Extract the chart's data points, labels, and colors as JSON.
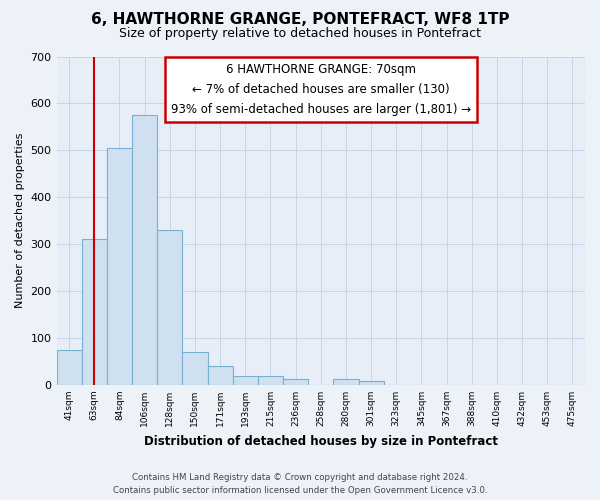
{
  "title": "6, HAWTHORNE GRANGE, PONTEFRACT, WF8 1TP",
  "subtitle": "Size of property relative to detached houses in Pontefract",
  "xlabel": "Distribution of detached houses by size in Pontefract",
  "ylabel": "Number of detached properties",
  "bar_labels": [
    "41sqm",
    "63sqm",
    "84sqm",
    "106sqm",
    "128sqm",
    "150sqm",
    "171sqm",
    "193sqm",
    "215sqm",
    "236sqm",
    "258sqm",
    "280sqm",
    "301sqm",
    "323sqm",
    "345sqm",
    "367sqm",
    "388sqm",
    "410sqm",
    "432sqm",
    "453sqm",
    "475sqm"
  ],
  "bar_values": [
    75,
    310,
    505,
    575,
    330,
    70,
    40,
    20,
    18,
    12,
    0,
    12,
    8,
    0,
    0,
    0,
    0,
    0,
    0,
    0,
    0
  ],
  "bar_face_color": "#cfe0f0",
  "bar_edge_color": "#7aafd4",
  "property_line_x": 1.0,
  "annotation_line1": "6 HAWTHORNE GRANGE: 70sqm",
  "annotation_line2": "← 7% of detached houses are smaller (130)",
  "annotation_line3": "93% of semi-detached houses are larger (1,801) →",
  "annotation_box_color": "#ffffff",
  "annotation_box_edge_color": "#cc0000",
  "ylim": [
    0,
    700
  ],
  "yticks": [
    0,
    100,
    200,
    300,
    400,
    500,
    600,
    700
  ],
  "footer_line1": "Contains HM Land Registry data © Crown copyright and database right 2024.",
  "footer_line2": "Contains public sector information licensed under the Open Government Licence v3.0.",
  "bg_color": "#edf2f9",
  "plot_bg_color": "#e8eef8",
  "grid_color": "#c8d4e8",
  "vline_color": "#cc0000",
  "title_fontsize": 11,
  "subtitle_fontsize": 9
}
